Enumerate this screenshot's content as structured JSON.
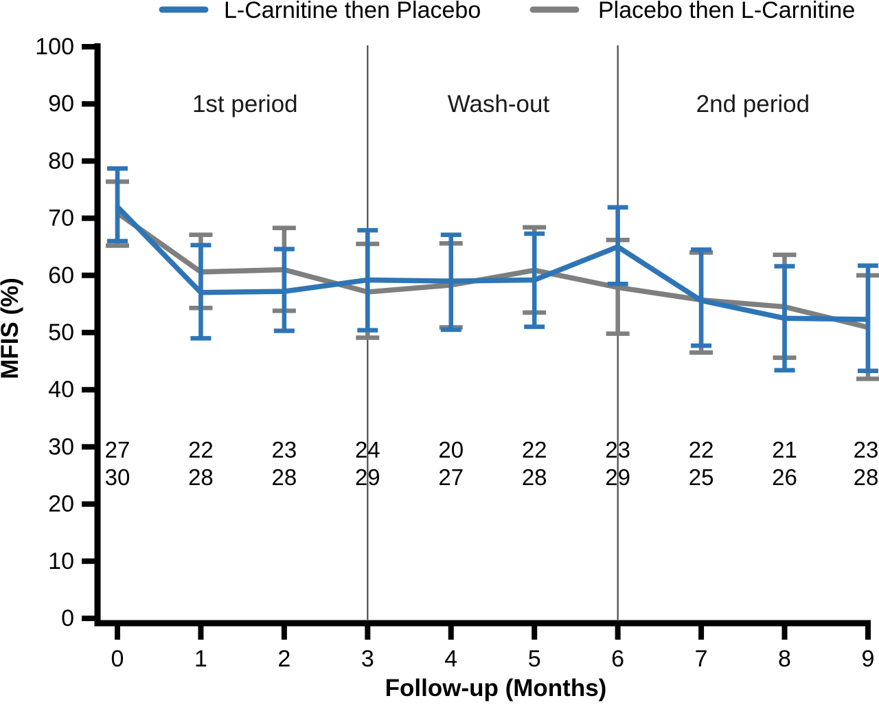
{
  "chart_data": {
    "type": "line",
    "title": "",
    "xlabel": "Follow-up (Months)",
    "ylabel": "MFIS (%)",
    "x": [
      0,
      1,
      2,
      3,
      4,
      5,
      6,
      7,
      8,
      9
    ],
    "xlim": [
      0,
      9
    ],
    "ylim": [
      0,
      100
    ],
    "yticks": [
      0,
      10,
      20,
      30,
      40,
      50,
      60,
      70,
      80,
      90,
      100
    ],
    "xticks": [
      0,
      1,
      2,
      3,
      4,
      5,
      6,
      7,
      8,
      9
    ],
    "grid": false,
    "legend_position": "top",
    "error_bars": true,
    "series": [
      {
        "name": "L-Carnitine then Placebo",
        "color": "#2e75b6",
        "values": [
          72.0,
          57.0,
          57.2,
          59.2,
          59.0,
          59.2,
          65.0,
          55.6,
          52.5,
          52.3
        ],
        "err_low": [
          66.0,
          49.0,
          50.3,
          50.4,
          50.5,
          51.0,
          58.5,
          47.7,
          43.4,
          43.3
        ],
        "err_high": [
          78.7,
          65.3,
          64.6,
          67.9,
          67.1,
          67.3,
          71.9,
          64.5,
          61.6,
          61.7
        ],
        "n_per_visit": [
          27,
          22,
          23,
          24,
          20,
          22,
          23,
          22,
          21,
          23
        ]
      },
      {
        "name": "Placebo then L-Carnitine",
        "color": "#7f7f7f",
        "values": [
          70.9,
          60.6,
          61.0,
          57.1,
          58.3,
          60.9,
          57.9,
          55.7,
          54.5,
          50.9
        ],
        "err_low": [
          65.2,
          54.3,
          53.8,
          49.1,
          50.9,
          53.5,
          49.8,
          46.5,
          45.6,
          41.9
        ],
        "err_high": [
          76.4,
          67.1,
          68.3,
          65.5,
          65.6,
          68.4,
          66.2,
          64.0,
          63.6,
          60.0
        ],
        "n_per_visit": [
          30,
          28,
          28,
          29,
          27,
          28,
          29,
          25,
          26,
          28
        ]
      }
    ],
    "annotations": {
      "period_labels": [
        {
          "label": "1st period",
          "x_center_month": 1.53
        },
        {
          "label": "Wash-out",
          "x_center_month": 4.57
        },
        {
          "label": "2nd period",
          "x_center_month": 7.62
        }
      ],
      "divider_months": [
        3,
        6
      ],
      "divider_color": "#4a4a4a"
    },
    "axis_color": "#000000"
  }
}
